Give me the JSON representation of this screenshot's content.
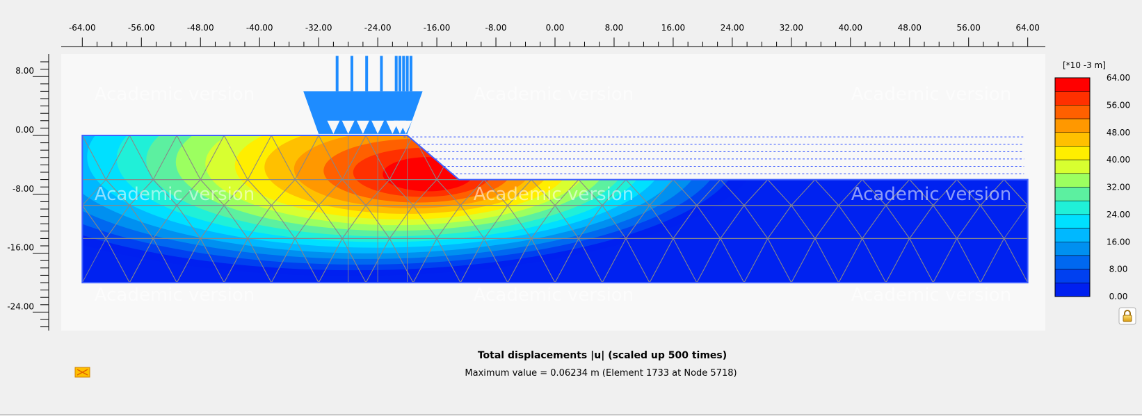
{
  "plot": {
    "title": "Total displacements |u| (scaled up 500 times)",
    "subtitle": "Maximum value = 0.06234 m (Element 1733 at Node 5718)",
    "watermark": "Academic version",
    "x_axis": {
      "min": -64,
      "max": 64,
      "labels": [
        "-64.00",
        "-56.00",
        "-48.00",
        "-40.00",
        "-32.00",
        "-24.00",
        "-16.00",
        "-8.00",
        "0.00",
        "8.00",
        "16.00",
        "24.00",
        "32.00",
        "40.00",
        "48.00",
        "56.00",
        "64.00"
      ]
    },
    "y_axis": {
      "labels": [
        "8.00",
        "0.00",
        "-8.00",
        "-16.00",
        "-24.00"
      ]
    },
    "ground_profile": {
      "crest_level": 0.0,
      "toe_level": -6.0,
      "base_level": -20.0,
      "crest_x_end": -20.0,
      "toe_x_start": -13.0
    },
    "max_displacement_location": {
      "x": -16.5,
      "y": -5.5
    }
  },
  "legend": {
    "unit": "[*10 -3 m]",
    "labels": [
      "64.00",
      "56.00",
      "48.00",
      "40.00",
      "32.00",
      "24.00",
      "16.00",
      "8.00",
      "0.00"
    ],
    "colors": [
      "#ff0000",
      "#ff3000",
      "#ff6000",
      "#ff9800",
      "#ffc000",
      "#ffee00",
      "#d8ff30",
      "#9cff60",
      "#5cf0a0",
      "#20f0d8",
      "#00e0ff",
      "#00b8ff",
      "#0090f0",
      "#0068f0",
      "#0040f0",
      "#0020f0"
    ]
  },
  "load": {
    "x_start": -32.0,
    "x_end": -20.0,
    "colors": {
      "load": "#1e8cff"
    }
  },
  "colors": {
    "background": "#f0f0f0",
    "plot_bg": "#f8f8f8",
    "soil_deep": "#0022f0",
    "mesh": "#888888",
    "water": "#3050ff"
  },
  "icons": {
    "lock": "lock-icon",
    "legend_swatch": "legend-swatch-icon"
  }
}
